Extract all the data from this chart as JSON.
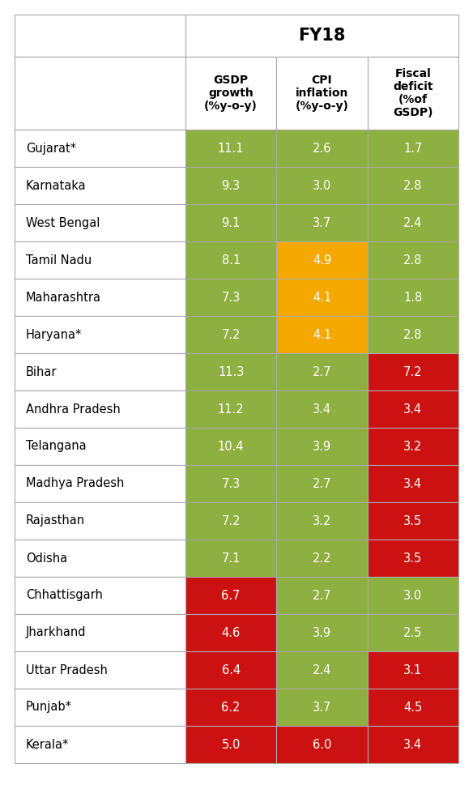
{
  "title": "FY18",
  "col_headers": [
    "GSDP\ngrowth\n(%y-o-y)",
    "CPI\ninflation\n(%y-o-y)",
    "Fiscal\ndeficit\n(%of\nGSDP)"
  ],
  "states": [
    "Gujarat*",
    "Karnataka",
    "West Bengal",
    "Tamil Nadu",
    "Maharashtra",
    "Haryana*",
    "Bihar",
    "Andhra Pradesh",
    "Telangana",
    "Madhya Pradesh",
    "Rajasthan",
    "Odisha",
    "Chhattisgarh",
    "Jharkhand",
    "Uttar Pradesh",
    "Punjab*",
    "Kerala*"
  ],
  "gsdp": [
    11.1,
    9.3,
    9.1,
    8.1,
    7.3,
    7.2,
    11.3,
    11.2,
    10.4,
    7.3,
    7.2,
    7.1,
    6.7,
    4.6,
    6.4,
    6.2,
    5.0
  ],
  "cpi": [
    2.6,
    3.0,
    3.7,
    4.9,
    4.1,
    4.1,
    2.7,
    3.4,
    3.9,
    2.7,
    3.2,
    2.2,
    2.7,
    3.9,
    2.4,
    3.7,
    6.0
  ],
  "fiscal": [
    1.7,
    2.8,
    2.4,
    2.8,
    1.8,
    2.8,
    7.2,
    3.4,
    3.2,
    3.4,
    3.5,
    3.5,
    3.0,
    2.5,
    3.1,
    4.5,
    3.4
  ],
  "gsdp_colors": [
    "#8db040",
    "#8db040",
    "#8db040",
    "#8db040",
    "#8db040",
    "#8db040",
    "#8db040",
    "#8db040",
    "#8db040",
    "#8db040",
    "#8db040",
    "#8db040",
    "#cc1111",
    "#cc1111",
    "#cc1111",
    "#cc1111",
    "#cc1111"
  ],
  "cpi_colors": [
    "#8db040",
    "#8db040",
    "#8db040",
    "#f5a800",
    "#f5a800",
    "#f5a800",
    "#8db040",
    "#8db040",
    "#8db040",
    "#8db040",
    "#8db040",
    "#8db040",
    "#8db040",
    "#8db040",
    "#8db040",
    "#8db040",
    "#cc1111"
  ],
  "fiscal_colors": [
    "#8db040",
    "#8db040",
    "#8db040",
    "#8db040",
    "#8db040",
    "#8db040",
    "#cc1111",
    "#cc1111",
    "#cc1111",
    "#cc1111",
    "#cc1111",
    "#cc1111",
    "#8db040",
    "#8db040",
    "#cc1111",
    "#cc1111",
    "#cc1111"
  ],
  "text_color": "#ffffff",
  "header_color": "#000000",
  "state_text_color": "#000000",
  "bg_color": "#ffffff",
  "grid_color": "#aaaaaa",
  "figsize": [
    5.84,
    9.69
  ],
  "dpi": 100
}
